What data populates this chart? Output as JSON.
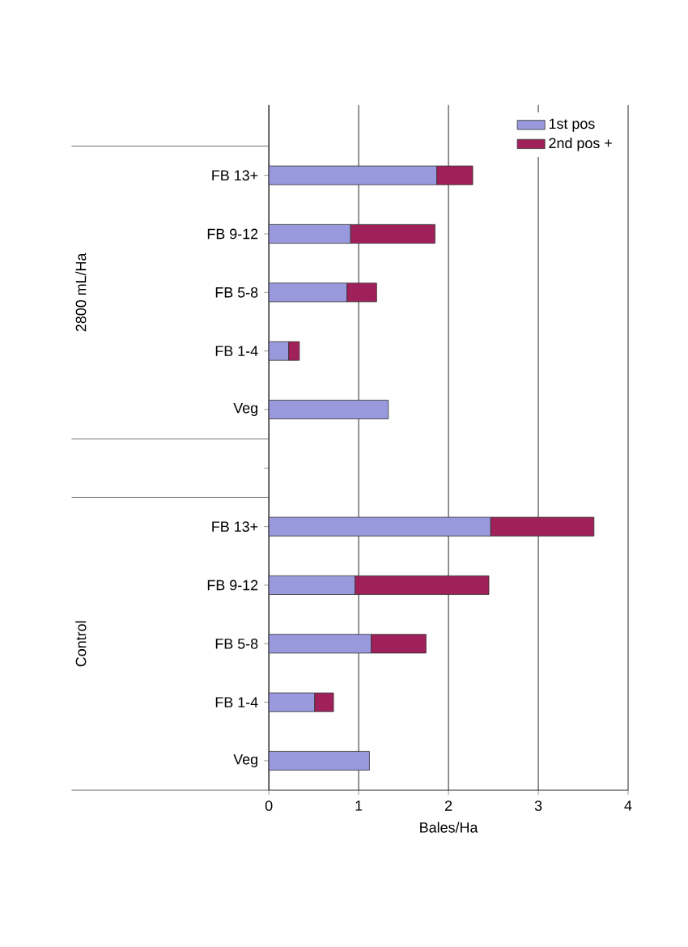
{
  "chart_data": {
    "type": "bar",
    "orientation": "horizontal",
    "stacked": true,
    "categories": [
      "FB 13+",
      "FB 9-12",
      "FB 5-8",
      "FB 1-4",
      "Veg",
      null,
      "FB 13+",
      "FB 9-12",
      "FB 5-8",
      "FB 1-4",
      "Veg"
    ],
    "series": [
      {
        "name": "1st pos",
        "color": "#9999dd",
        "values": [
          1.87,
          0.91,
          0.87,
          0.22,
          1.33,
          null,
          2.47,
          0.96,
          1.14,
          0.51,
          1.12
        ]
      },
      {
        "name": "2nd pos +",
        "color": "#a0205a",
        "values": [
          0.4,
          0.94,
          0.33,
          0.12,
          null,
          null,
          1.15,
          1.49,
          0.61,
          0.21,
          null
        ]
      }
    ],
    "xlabel": "Bales/Ha",
    "xlim": [
      0,
      4
    ],
    "xticks": [
      0,
      1,
      2,
      3,
      4
    ],
    "grid": "x",
    "legend": "top right",
    "annotations": [
      "2800 mL/Ha",
      "Control"
    ]
  }
}
